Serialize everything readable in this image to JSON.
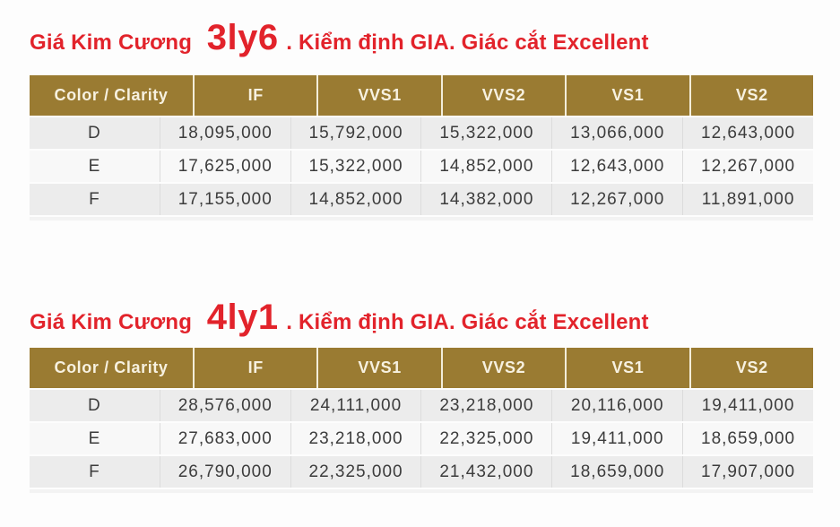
{
  "colors": {
    "title_red": "#e2232b",
    "header_gold": "#9a7b32",
    "header_text_cream": "#f7f1e0",
    "row_gray": "#ececec",
    "row_light": "#f8f8f8",
    "cell_text": "#3c3c3c"
  },
  "sections": [
    {
      "title": {
        "prefix": "Giá Kim Cương",
        "size": "3ly6",
        "suffix": ". Kiểm định GIA. Giác cắt Excellent"
      },
      "table": {
        "columns": [
          "Color / Clarity",
          "IF",
          "VVS1",
          "VVS2",
          "VS1",
          "VS2"
        ],
        "rows": [
          {
            "color": "D",
            "values": [
              "18,095,000",
              "15,792,000",
              "15,322,000",
              "13,066,000",
              "12,643,000"
            ]
          },
          {
            "color": "E",
            "values": [
              "17,625,000",
              "15,322,000",
              "14,852,000",
              "12,643,000",
              "12,267,000"
            ]
          },
          {
            "color": "F",
            "values": [
              "17,155,000",
              "14,852,000",
              "14,382,000",
              "12,267,000",
              "11,891,000"
            ]
          }
        ]
      }
    },
    {
      "title": {
        "prefix": "Giá Kim Cương",
        "size": "4ly1",
        "suffix": ". Kiểm định GIA. Giác cắt Excellent"
      },
      "table": {
        "columns": [
          "Color / Clarity",
          "IF",
          "VVS1",
          "VVS2",
          "VS1",
          "VS2"
        ],
        "rows": [
          {
            "color": "D",
            "values": [
              "28,576,000",
              "24,111,000",
              "23,218,000",
              "20,116,000",
              "19,411,000"
            ]
          },
          {
            "color": "E",
            "values": [
              "27,683,000",
              "23,218,000",
              "22,325,000",
              "19,411,000",
              "18,659,000"
            ]
          },
          {
            "color": "F",
            "values": [
              "26,790,000",
              "22,325,000",
              "21,432,000",
              "18,659,000",
              "17,907,000"
            ]
          }
        ]
      }
    }
  ],
  "chart_data": [
    {
      "type": "table",
      "title": "Giá Kim Cương 3ly6. Kiểm định GIA. Giác cắt Excellent",
      "columns": [
        "Color / Clarity",
        "IF",
        "VVS1",
        "VVS2",
        "VS1",
        "VS2"
      ],
      "rows": [
        [
          "D",
          18095000,
          15792000,
          15322000,
          13066000,
          12643000
        ],
        [
          "E",
          17625000,
          15322000,
          14852000,
          12643000,
          12267000
        ],
        [
          "F",
          17155000,
          14852000,
          14382000,
          12267000,
          11891000
        ]
      ]
    },
    {
      "type": "table",
      "title": "Giá Kim Cương 4ly1. Kiểm định GIA. Giác cắt Excellent",
      "columns": [
        "Color / Clarity",
        "IF",
        "VVS1",
        "VVS2",
        "VS1",
        "VS2"
      ],
      "rows": [
        [
          "D",
          28576000,
          24111000,
          23218000,
          20116000,
          19411000
        ],
        [
          "E",
          27683000,
          23218000,
          22325000,
          19411000,
          18659000
        ],
        [
          "F",
          26790000,
          22325000,
          21432000,
          18659000,
          17907000
        ]
      ]
    }
  ]
}
